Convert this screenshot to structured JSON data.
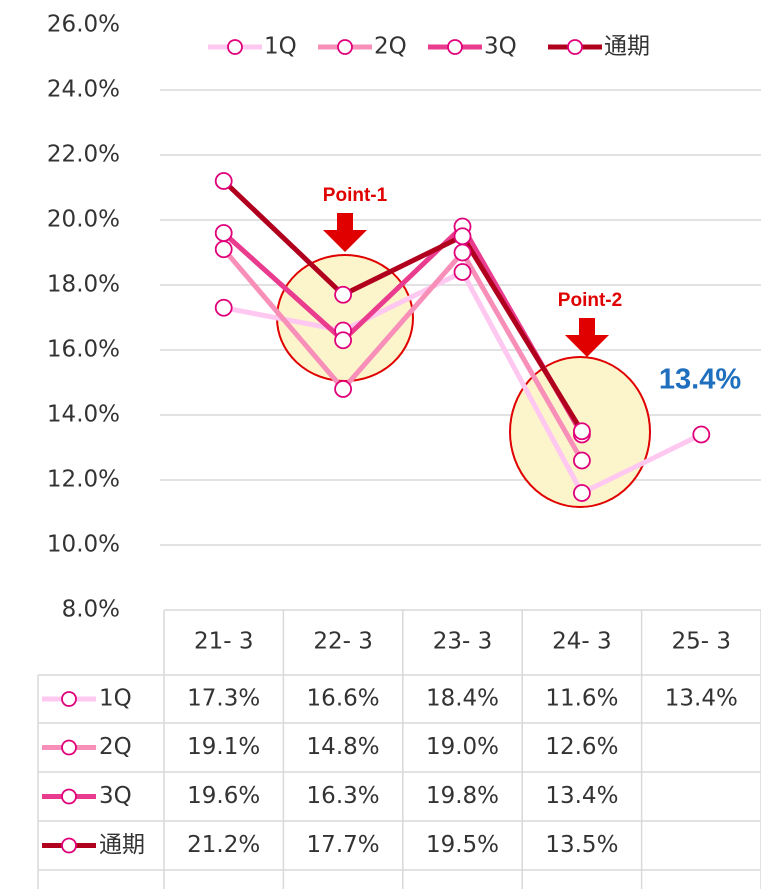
{
  "chart_data": {
    "type": "line",
    "categories": [
      "21- 3",
      "22- 3",
      "23- 3",
      "24- 3",
      "25- 3"
    ],
    "series": [
      {
        "name": "1Q",
        "color": "#ffc8f0",
        "values": [
          17.3,
          16.6,
          18.4,
          11.6,
          13.4
        ],
        "value_labels": [
          "17.3%",
          "16.6%",
          "18.4%",
          "11.6%",
          "13.4%"
        ]
      },
      {
        "name": "2Q",
        "color": "#f78fb8",
        "values": [
          19.1,
          14.8,
          19.0,
          12.6,
          null
        ],
        "value_labels": [
          "19.1%",
          "14.8%",
          "19.0%",
          "12.6%",
          null
        ]
      },
      {
        "name": "3Q",
        "color": "#ea3c8e",
        "values": [
          19.6,
          16.3,
          19.8,
          13.4,
          null
        ],
        "value_labels": [
          "19.6%",
          "16.3%",
          "19.8%",
          "13.4%",
          null
        ]
      },
      {
        "name": "通期",
        "color": "#b0001e",
        "values": [
          21.2,
          17.7,
          19.5,
          13.5,
          null
        ],
        "value_labels": [
          "21.2%",
          "17.7%",
          "19.5%",
          "13.5%",
          null
        ]
      }
    ],
    "ylim": [
      8,
      26
    ],
    "yticks": [
      {
        "value": 8,
        "label": "8.0%"
      },
      {
        "value": 10,
        "label": "10.0%"
      },
      {
        "value": 12,
        "label": "12.0%"
      },
      {
        "value": 14,
        "label": "14.0%"
      },
      {
        "value": 16,
        "label": "16.0%"
      },
      {
        "value": 18,
        "label": "18.0%"
      },
      {
        "value": 20,
        "label": "20.0%"
      },
      {
        "value": 22,
        "label": "22.0%"
      },
      {
        "value": 24,
        "label": "24.0%"
      },
      {
        "value": 26,
        "label": "26.0%"
      }
    ],
    "grid": true,
    "legend": "top",
    "marker_color": "#e0007a",
    "annotations": [
      "Point-1",
      "Point-2",
      "13.4%"
    ]
  }
}
